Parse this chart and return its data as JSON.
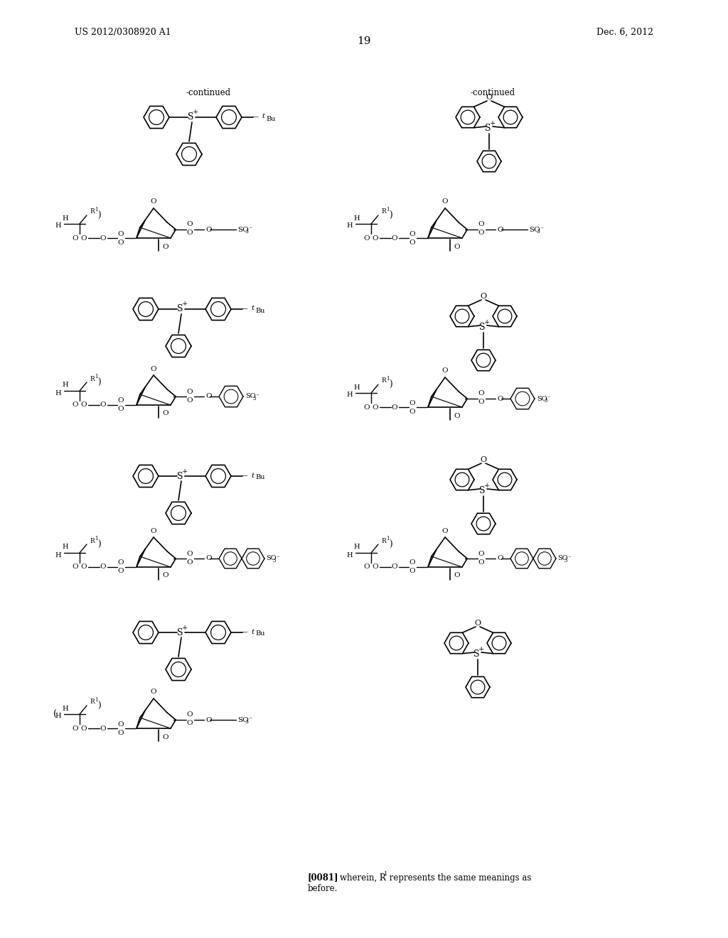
{
  "header_left": "US 2012/0308920 A1",
  "header_right": "Dec. 6, 2012",
  "page_number": "19",
  "continued_left": "-continued",
  "continued_right": "-continued",
  "footnote_ref": "[0081]",
  "footnote_text": "wherein, R",
  "footnote_sup": "1",
  "footnote_rest": " represents the same meanings as",
  "footnote_line2": "before.",
  "bg": "#ffffff",
  "fg": "#000000"
}
